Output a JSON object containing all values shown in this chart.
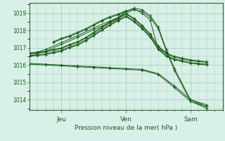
{
  "background_color": "#d8f0e8",
  "grid_color": "#a0c8b0",
  "line_color": "#1a5c1a",
  "xlabel": "Pression niveau de la mer( hPa )",
  "ylim": [
    1013.4,
    1019.6
  ],
  "yticks": [
    1014,
    1015,
    1016,
    1017,
    1018,
    1019
  ],
  "xlim": [
    0,
    144
  ],
  "xtick_positions": [
    24,
    72,
    120
  ],
  "xtick_labels": [
    "Jeu",
    "Ven",
    "Sam"
  ],
  "lines": [
    {
      "x": [
        0,
        6,
        12,
        18,
        24,
        30,
        36,
        42,
        48,
        54,
        60,
        66,
        72,
        78,
        84,
        90,
        96,
        102,
        108,
        114,
        120,
        126,
        132
      ],
      "y": [
        1016.7,
        1016.75,
        1016.8,
        1016.9,
        1017.0,
        1017.2,
        1017.35,
        1017.6,
        1017.9,
        1018.2,
        1018.5,
        1018.75,
        1019.0,
        1018.7,
        1018.3,
        1017.8,
        1017.1,
        1016.7,
        1016.5,
        1016.4,
        1016.3,
        1016.25,
        1016.2
      ]
    },
    {
      "x": [
        0,
        6,
        12,
        18,
        24,
        30,
        36,
        42,
        48,
        54,
        60,
        66,
        72,
        78,
        84,
        90,
        96,
        102,
        108,
        114,
        120,
        126,
        132
      ],
      "y": [
        1016.65,
        1016.7,
        1016.75,
        1016.85,
        1016.95,
        1017.15,
        1017.3,
        1017.55,
        1017.85,
        1018.15,
        1018.45,
        1018.7,
        1018.95,
        1018.65,
        1018.25,
        1017.75,
        1017.05,
        1016.65,
        1016.45,
        1016.35,
        1016.25,
        1016.2,
        1016.15
      ]
    },
    {
      "x": [
        0,
        6,
        12,
        18,
        24,
        30,
        36,
        42,
        48,
        54,
        60,
        66,
        72,
        78,
        84,
        90,
        96,
        102,
        108,
        114,
        120,
        126,
        132
      ],
      "y": [
        1016.55,
        1016.6,
        1016.65,
        1016.75,
        1016.85,
        1017.05,
        1017.2,
        1017.45,
        1017.75,
        1018.05,
        1018.35,
        1018.6,
        1018.85,
        1018.55,
        1018.15,
        1017.65,
        1016.95,
        1016.55,
        1016.35,
        1016.25,
        1016.15,
        1016.1,
        1016.05
      ]
    },
    {
      "x": [
        0,
        6,
        12,
        18,
        24,
        30,
        36,
        42,
        48,
        54,
        60,
        66,
        72,
        78,
        84,
        90,
        96,
        102,
        108,
        114,
        120,
        126,
        132
      ],
      "y": [
        1016.5,
        1016.55,
        1016.6,
        1016.7,
        1016.8,
        1017.0,
        1017.15,
        1017.4,
        1017.7,
        1018.0,
        1018.3,
        1018.55,
        1018.8,
        1018.5,
        1018.1,
        1017.6,
        1016.9,
        1016.5,
        1016.3,
        1016.2,
        1016.1,
        1016.05,
        1016.0
      ]
    },
    {
      "x": [
        0,
        12,
        24,
        36,
        48,
        60,
        66,
        72,
        78,
        84,
        90,
        96,
        102,
        108,
        120,
        132
      ],
      "y": [
        1016.6,
        1016.9,
        1017.3,
        1017.7,
        1018.15,
        1018.55,
        1018.75,
        1019.1,
        1019.3,
        1019.2,
        1018.85,
        1018.2,
        1016.9,
        1015.8,
        1014.0,
        1013.7
      ]
    },
    {
      "x": [
        0,
        12,
        24,
        36,
        48,
        60,
        66,
        72,
        78,
        84,
        90,
        96,
        102,
        108,
        120,
        132
      ],
      "y": [
        1016.5,
        1016.8,
        1017.2,
        1017.6,
        1018.05,
        1018.45,
        1018.65,
        1019.0,
        1019.2,
        1019.1,
        1018.75,
        1018.1,
        1016.8,
        1015.7,
        1013.9,
        1013.6
      ]
    },
    {
      "x": [
        18,
        24,
        30,
        36,
        42,
        48,
        54,
        60,
        66,
        72,
        78,
        84,
        90,
        96,
        102
      ],
      "y": [
        1017.3,
        1017.5,
        1017.65,
        1017.85,
        1018.05,
        1018.3,
        1018.55,
        1018.75,
        1018.9,
        1019.1,
        1019.25,
        1019.0,
        1018.6,
        1016.9,
        1016.75
      ]
    },
    {
      "x": [
        18,
        24,
        30,
        36,
        42,
        48,
        54,
        60,
        66,
        72
      ],
      "y": [
        1017.35,
        1017.55,
        1017.7,
        1017.9,
        1018.1,
        1018.35,
        1018.6,
        1018.8,
        1018.95,
        1019.15
      ]
    },
    {
      "x": [
        0,
        12,
        24,
        36,
        48,
        60,
        72,
        84,
        96,
        108,
        120,
        132
      ],
      "y": [
        1016.1,
        1016.05,
        1016.0,
        1015.95,
        1015.9,
        1015.85,
        1015.8,
        1015.75,
        1015.5,
        1014.8,
        1014.0,
        1013.6
      ]
    },
    {
      "x": [
        0,
        12,
        24,
        36,
        48,
        60,
        72,
        84,
        96,
        108,
        120,
        132
      ],
      "y": [
        1016.05,
        1016.0,
        1015.95,
        1015.9,
        1015.85,
        1015.8,
        1015.75,
        1015.7,
        1015.45,
        1014.7,
        1013.9,
        1013.5
      ]
    }
  ]
}
